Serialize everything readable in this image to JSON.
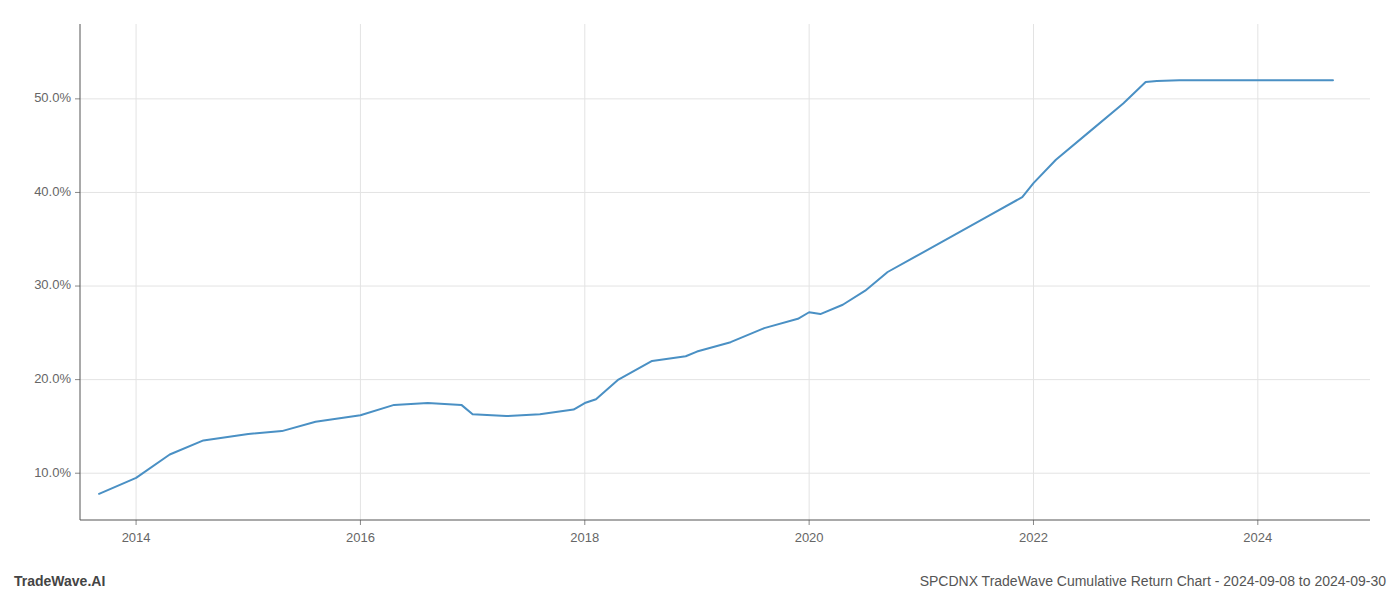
{
  "chart_data": {
    "type": "line",
    "title": "SPCDNX TradeWave Cumulative Return Chart - 2024-09-08 to 2024-09-30",
    "annotations": [
      "TradeWave.AI"
    ],
    "color": "#4a90c4",
    "x": [
      2013.67,
      2014.0,
      2014.3,
      2014.6,
      2015.0,
      2015.3,
      2015.6,
      2016.0,
      2016.3,
      2016.6,
      2016.9,
      2017.0,
      2017.3,
      2017.6,
      2017.9,
      2018.0,
      2018.1,
      2018.3,
      2018.6,
      2018.9,
      2019.0,
      2019.3,
      2019.6,
      2019.9,
      2020.0,
      2020.1,
      2020.3,
      2020.5,
      2020.7,
      2021.0,
      2021.3,
      2021.6,
      2021.9,
      2022.0,
      2022.2,
      2022.5,
      2022.8,
      2023.0,
      2023.1,
      2023.3,
      2023.6,
      2023.9,
      2024.0,
      2024.3,
      2024.67
    ],
    "values": [
      7.8,
      9.5,
      12.0,
      13.5,
      14.2,
      14.5,
      15.5,
      16.2,
      17.3,
      17.5,
      17.3,
      16.3,
      16.1,
      16.3,
      16.8,
      17.5,
      17.9,
      20.0,
      22.0,
      22.5,
      23.0,
      24.0,
      25.5,
      26.5,
      27.2,
      27.0,
      28.0,
      29.5,
      31.5,
      33.5,
      35.5,
      37.5,
      39.5,
      41.0,
      43.5,
      46.5,
      49.5,
      51.8,
      51.9,
      52.0,
      52.0,
      52.0,
      52.0,
      52.0,
      52.0
    ],
    "xlim": [
      2013.5,
      2025.0
    ],
    "ylim": [
      5,
      58
    ],
    "xticks": [
      2014,
      2016,
      2018,
      2020,
      2022,
      2024
    ],
    "yticks": [
      {
        "value": 10.0,
        "label": "10.0%"
      },
      {
        "value": 20.0,
        "label": "20.0%"
      },
      {
        "value": 30.0,
        "label": "30.0%"
      },
      {
        "value": 40.0,
        "label": "40.0%"
      },
      {
        "value": 50.0,
        "label": "50.0%"
      }
    ],
    "grid": true
  }
}
